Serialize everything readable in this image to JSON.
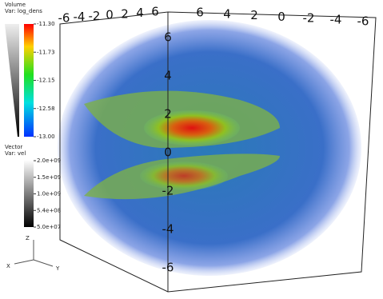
{
  "legend_volume": {
    "title": "Volume",
    "variable": "Var: log_dens",
    "ticks": [
      "-11.30",
      "-11.73",
      "-12.15",
      "-12.58",
      "-13.00"
    ]
  },
  "legend_vector": {
    "title": "Vector",
    "variable": "Var: vel",
    "ticks": [
      "2.0e+09",
      "1.5e+09",
      "1.0e+09",
      "5.4e+08",
      "5.0e+07"
    ]
  },
  "axes": {
    "top_left": [
      "-6",
      "-4",
      "-2",
      "0",
      "2",
      "4",
      "6"
    ],
    "top_right": [
      "6",
      "4",
      "2",
      "0",
      "-2",
      "-4",
      "-6"
    ],
    "vertical": [
      "6",
      "4",
      "2",
      "0",
      "-2",
      "-4",
      "-6"
    ]
  },
  "triad": {
    "z": "Z",
    "x": "X",
    "y": "Y"
  }
}
